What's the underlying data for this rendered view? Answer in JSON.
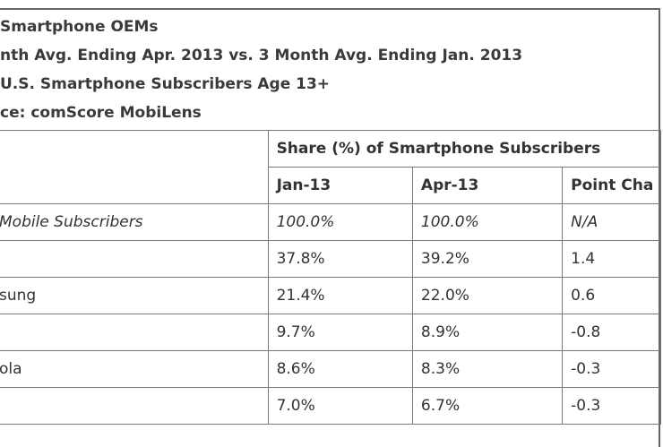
{
  "header": {
    "lines": [
      "Smartphone OEMs",
      "nth Avg. Ending Apr. 2013 vs. 3 Month Avg. Ending Jan. 2013",
      "U.S. Smartphone Subscribers Age 13+",
      "ce: comScore MobiLens"
    ]
  },
  "table": {
    "group_header": "Share (%) of Smartphone Subscribers",
    "columns": [
      "Jan-13",
      "Apr-13",
      "Point Cha"
    ],
    "rows": [
      [
        "Mobile Subscribers",
        "100.0%",
        "100.0%",
        "N/A"
      ],
      [
        null,
        "37.8%",
        "39.2%",
        "1.4"
      ],
      [
        "sung",
        "21.4%",
        "22.0%",
        "0.6"
      ],
      [
        null,
        "9.7%",
        "8.9%",
        "-0.8"
      ],
      [
        "ola",
        "8.6%",
        "8.3%",
        "-0.3"
      ],
      [
        null,
        "7.0%",
        "6.7%",
        "-0.3"
      ]
    ]
  }
}
